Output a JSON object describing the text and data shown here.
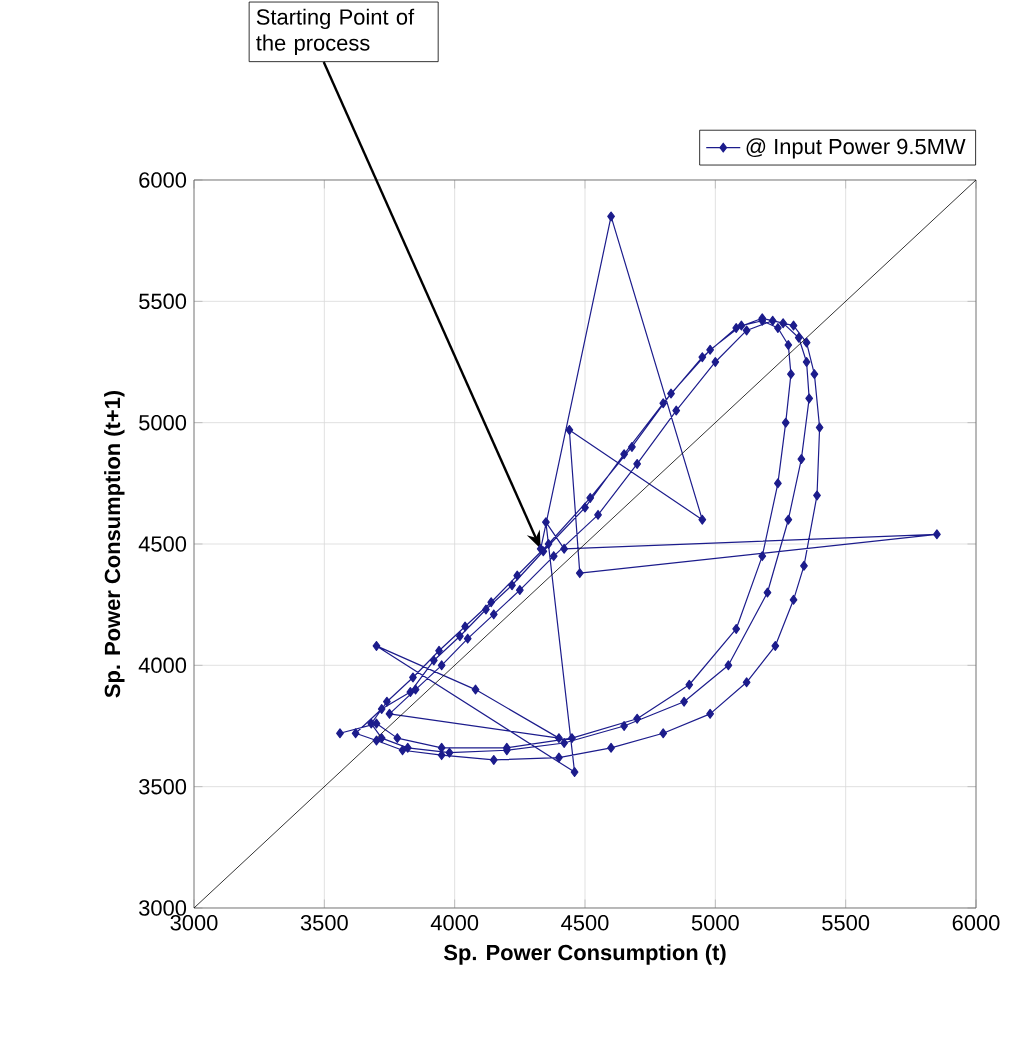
{
  "chart_data": {
    "type": "line",
    "xlabel": "Sp. Power Consumption (t)",
    "ylabel": "Sp. Power Consumption (t+1)",
    "xlim": [
      3000,
      6000
    ],
    "ylim": [
      3000,
      6000
    ],
    "xticks": [
      3000,
      3500,
      4000,
      4500,
      5000,
      5500,
      6000
    ],
    "yticks": [
      3000,
      3500,
      4000,
      4500,
      5000,
      5500,
      6000
    ],
    "grid": true,
    "legend": "top right",
    "line_style": "solid",
    "annotations": [
      {
        "text": "Starting Point of the process",
        "x": 4330,
        "y": 4480
      }
    ],
    "series": [
      {
        "name": "@ Input Power 9.5MW",
        "color": "#1c1c8c",
        "marker": "diamond",
        "x": [
          4330,
          4600,
          4950,
          4440,
          4480,
          5850,
          4420,
          4350,
          4460,
          3700,
          4080,
          4400,
          3750,
          3850,
          3950,
          4050,
          4150,
          4250,
          4380,
          4550,
          4700,
          4850,
          5000,
          5120,
          5220,
          5300,
          5350,
          5380,
          5400,
          5390,
          5340,
          5300,
          5230,
          5120,
          4980,
          4800,
          4600,
          4400,
          4150,
          3950,
          3800,
          3700,
          3620,
          3720,
          3830,
          3920,
          4020,
          4120,
          4220,
          4340,
          4500,
          4650,
          4800,
          4950,
          5080,
          5180,
          5260,
          5320,
          5350,
          5360,
          5330,
          5280,
          5200,
          5050,
          4880,
          4650,
          4420,
          4200,
          3980,
          3820,
          3720,
          3680,
          3740,
          3840,
          3940,
          4040,
          4140,
          4240,
          4360,
          4520,
          4680,
          4830,
          4980,
          5100,
          5180,
          5240,
          5280,
          5290,
          5270,
          5240,
          5180,
          5080,
          4900,
          4700,
          4450,
          4200,
          3950,
          3780,
          3700,
          3560
        ],
        "values": [
          4480,
          5850,
          4600,
          4970,
          4380,
          4540,
          4480,
          4590,
          3560,
          4080,
          3900,
          3700,
          3800,
          3900,
          4000,
          4110,
          4210,
          4310,
          4450,
          4620,
          4830,
          5050,
          5250,
          5380,
          5420,
          5400,
          5330,
          5200,
          4980,
          4700,
          4410,
          4270,
          4080,
          3930,
          3800,
          3720,
          3660,
          3620,
          3610,
          3630,
          3650,
          3690,
          3720,
          3820,
          3890,
          4020,
          4120,
          4230,
          4330,
          4470,
          4650,
          4870,
          5080,
          5270,
          5390,
          5430,
          5410,
          5350,
          5250,
          5100,
          4850,
          4600,
          4300,
          4000,
          3850,
          3750,
          3680,
          3650,
          3640,
          3660,
          3700,
          3760,
          3850,
          3950,
          4060,
          4160,
          4260,
          4370,
          4500,
          4690,
          4900,
          5120,
          5300,
          5400,
          5420,
          5390,
          5320,
          5200,
          5000,
          4750,
          4450,
          4150,
          3920,
          3780,
          3700,
          3660,
          3660,
          3700,
          3760,
          3720
        ]
      },
      {
        "color": "#000000",
        "marker": "none",
        "x": [
          3000,
          6000
        ],
        "values": [
          3000,
          6000
        ]
      }
    ]
  }
}
